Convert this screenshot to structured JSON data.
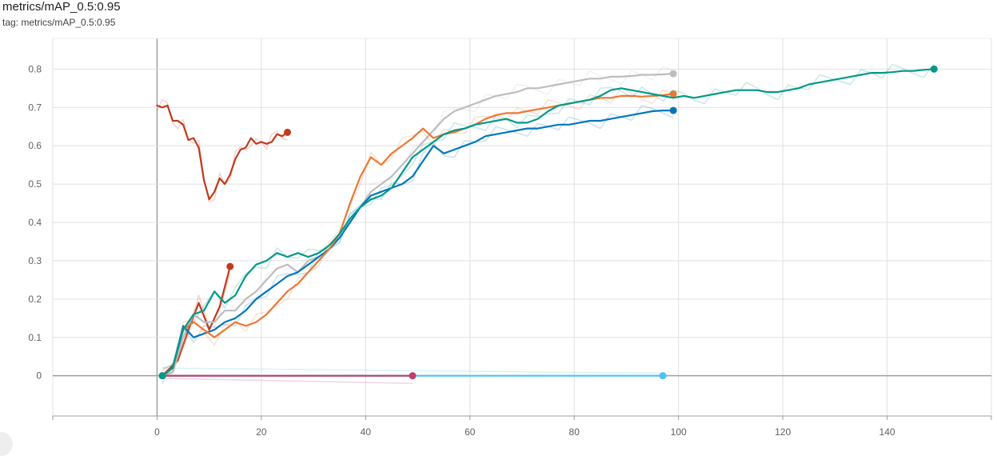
{
  "header": {
    "title": "metrics/mAP_0.5:0.95",
    "tag": "tag: metrics/mAP_0.5:0.95"
  },
  "chart_data": {
    "type": "line",
    "title": "metrics/mAP_0.5:0.95",
    "xlabel": "",
    "ylabel": "",
    "xlim": [
      -20,
      160
    ],
    "ylim": [
      -0.105,
      0.88
    ],
    "xticks": [
      0,
      20,
      40,
      60,
      80,
      100,
      120,
      140
    ],
    "yticks": [
      0,
      0.1,
      0.2,
      0.3,
      0.4,
      0.5,
      0.6,
      0.7,
      0.8
    ],
    "grid": true,
    "legend": "none",
    "series": [
      {
        "color": "#4dc4ef",
        "x": [
          1,
          97
        ],
        "y": [
          0,
          0
        ]
      },
      {
        "color": "#c33d69",
        "x": [
          1,
          49
        ],
        "y": [
          0,
          0
        ]
      },
      {
        "color": "#c13a1d",
        "x": [
          1,
          4,
          6,
          8,
          10,
          12,
          14
        ],
        "y": [
          0,
          0.04,
          0.12,
          0.19,
          0.12,
          0.18,
          0.285
        ]
      },
      {
        "color": "#c13a1d",
        "x": [
          0,
          1,
          2,
          3,
          4,
          5,
          6,
          7,
          8,
          9,
          10,
          11,
          12,
          13,
          14,
          15,
          16,
          17,
          18,
          19,
          20,
          21,
          22,
          23,
          24,
          25
        ],
        "y": [
          0.705,
          0.7,
          0.705,
          0.665,
          0.665,
          0.655,
          0.615,
          0.62,
          0.595,
          0.51,
          0.46,
          0.48,
          0.515,
          0.5,
          0.525,
          0.565,
          0.59,
          0.595,
          0.62,
          0.605,
          0.61,
          0.605,
          0.61,
          0.63,
          0.625,
          0.635
        ]
      },
      {
        "color": "#bdbdbd",
        "x": [
          1,
          3,
          5,
          7,
          9,
          11,
          13,
          15,
          17,
          19,
          21,
          23,
          25,
          27,
          29,
          31,
          33,
          35,
          37,
          39,
          41,
          43,
          45,
          47,
          49,
          51,
          53,
          55,
          57,
          59,
          61,
          63,
          65,
          67,
          69,
          71,
          73,
          75,
          77,
          79,
          81,
          83,
          85,
          87,
          89,
          91,
          93,
          95,
          97,
          99
        ],
        "y": [
          0,
          0.01,
          0.1,
          0.16,
          0.14,
          0.14,
          0.17,
          0.17,
          0.2,
          0.22,
          0.25,
          0.28,
          0.29,
          0.27,
          0.3,
          0.31,
          0.33,
          0.36,
          0.4,
          0.44,
          0.48,
          0.5,
          0.52,
          0.55,
          0.58,
          0.61,
          0.64,
          0.67,
          0.69,
          0.7,
          0.71,
          0.72,
          0.73,
          0.735,
          0.74,
          0.75,
          0.75,
          0.755,
          0.76,
          0.765,
          0.77,
          0.775,
          0.775,
          0.78,
          0.78,
          0.782,
          0.785,
          0.785,
          0.786,
          0.788
        ]
      },
      {
        "color": "#0077bb",
        "x": [
          1,
          3,
          5,
          7,
          9,
          11,
          13,
          15,
          17,
          19,
          21,
          23,
          25,
          27,
          29,
          31,
          33,
          35,
          37,
          39,
          41,
          43,
          45,
          47,
          49,
          51,
          53,
          55,
          57,
          59,
          61,
          63,
          65,
          67,
          69,
          71,
          73,
          75,
          77,
          79,
          81,
          83,
          85,
          87,
          89,
          91,
          93,
          95,
          97,
          99
        ],
        "y": [
          0,
          0.02,
          0.13,
          0.1,
          0.11,
          0.12,
          0.14,
          0.15,
          0.17,
          0.2,
          0.22,
          0.24,
          0.26,
          0.27,
          0.29,
          0.31,
          0.33,
          0.36,
          0.4,
          0.44,
          0.47,
          0.48,
          0.49,
          0.5,
          0.52,
          0.56,
          0.6,
          0.58,
          0.59,
          0.6,
          0.61,
          0.625,
          0.63,
          0.635,
          0.64,
          0.645,
          0.645,
          0.65,
          0.655,
          0.655,
          0.66,
          0.665,
          0.665,
          0.67,
          0.675,
          0.68,
          0.685,
          0.69,
          0.692,
          0.692
        ]
      },
      {
        "color": "#ee7733",
        "x": [
          1,
          3,
          5,
          7,
          9,
          11,
          13,
          15,
          17,
          19,
          21,
          23,
          25,
          27,
          29,
          31,
          33,
          35,
          37,
          39,
          41,
          43,
          45,
          47,
          49,
          51,
          53,
          55,
          57,
          59,
          61,
          63,
          65,
          67,
          69,
          71,
          73,
          75,
          77,
          79,
          81,
          83,
          85,
          87,
          89,
          91,
          93,
          95,
          97,
          99
        ],
        "y": [
          0,
          0.02,
          0.12,
          0.14,
          0.12,
          0.1,
          0.12,
          0.14,
          0.13,
          0.14,
          0.16,
          0.19,
          0.22,
          0.24,
          0.27,
          0.3,
          0.33,
          0.37,
          0.45,
          0.52,
          0.57,
          0.55,
          0.58,
          0.6,
          0.62,
          0.645,
          0.62,
          0.63,
          0.635,
          0.645,
          0.655,
          0.67,
          0.68,
          0.685,
          0.685,
          0.69,
          0.695,
          0.7,
          0.705,
          0.71,
          0.715,
          0.72,
          0.725,
          0.725,
          0.73,
          0.73,
          0.728,
          0.73,
          0.732,
          0.735
        ]
      },
      {
        "color": "#009988",
        "x": [
          1,
          3,
          5,
          7,
          9,
          11,
          13,
          15,
          17,
          19,
          21,
          23,
          25,
          27,
          29,
          31,
          33,
          35,
          37,
          39,
          41,
          43,
          45,
          47,
          49,
          51,
          53,
          55,
          57,
          59,
          61,
          63,
          65,
          67,
          69,
          71,
          73,
          75,
          77,
          79,
          81,
          83,
          85,
          87,
          89,
          91,
          93,
          95,
          97,
          99,
          101,
          103,
          105,
          107,
          109,
          111,
          113,
          115,
          117,
          119,
          121,
          123,
          125,
          127,
          129,
          131,
          133,
          135,
          137,
          139,
          141,
          143,
          145,
          147,
          149
        ],
        "y": [
          0,
          0.02,
          0.12,
          0.16,
          0.17,
          0.22,
          0.19,
          0.21,
          0.26,
          0.29,
          0.3,
          0.32,
          0.31,
          0.32,
          0.31,
          0.32,
          0.34,
          0.37,
          0.41,
          0.44,
          0.46,
          0.47,
          0.49,
          0.53,
          0.57,
          0.59,
          0.61,
          0.63,
          0.64,
          0.645,
          0.655,
          0.66,
          0.665,
          0.67,
          0.66,
          0.66,
          0.67,
          0.69,
          0.705,
          0.71,
          0.715,
          0.72,
          0.73,
          0.745,
          0.75,
          0.745,
          0.74,
          0.735,
          0.73,
          0.725,
          0.73,
          0.725,
          0.73,
          0.735,
          0.74,
          0.745,
          0.745,
          0.745,
          0.74,
          0.74,
          0.745,
          0.75,
          0.76,
          0.765,
          0.77,
          0.775,
          0.78,
          0.785,
          0.79,
          0.79,
          0.792,
          0.795,
          0.795,
          0.798,
          0.8
        ]
      }
    ]
  }
}
